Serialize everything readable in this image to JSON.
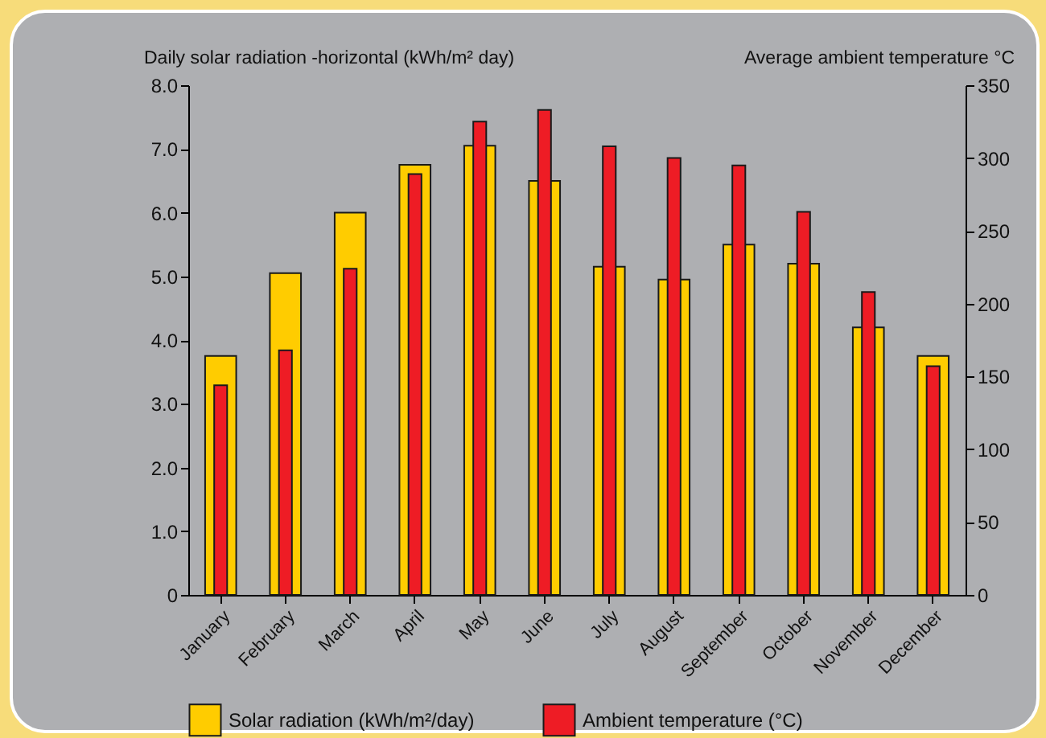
{
  "chart_data": {
    "type": "bar",
    "ylabel": "Daily solar radiation -horizontal (kWh/m² day)",
    "y2label": "Average ambient temperature °C",
    "categories": [
      "January",
      "February",
      "March",
      "April",
      "May",
      "June",
      "July",
      "August",
      "September",
      "October",
      "November",
      "December"
    ],
    "series": [
      {
        "name": "Solar radiation (kWh/m²/day)",
        "color": "#ffcc00",
        "values": [
          3.75,
          5.05,
          6.0,
          6.75,
          7.05,
          6.5,
          5.15,
          4.95,
          5.5,
          5.2,
          4.2,
          3.75
        ]
      },
      {
        "name": "Ambient temperature (°C)",
        "color": "#ee1c25",
        "axis": "y2",
        "values": [
          144,
          168,
          224,
          289,
          325,
          333,
          308,
          300,
          295,
          263,
          208,
          157
        ]
      }
    ],
    "ylim": [
      0,
      8
    ],
    "yticks": [
      {
        "value": 0,
        "label": "0"
      },
      {
        "value": 1,
        "label": "1.0"
      },
      {
        "value": 2,
        "label": "2.0"
      },
      {
        "value": 3,
        "label": "3.0"
      },
      {
        "value": 4,
        "label": "4.0"
      },
      {
        "value": 5,
        "label": "5.0"
      },
      {
        "value": 6,
        "label": "6.0"
      },
      {
        "value": 7,
        "label": "7.0"
      },
      {
        "value": 8,
        "label": "8.0"
      }
    ],
    "y2lim": [
      0,
      350
    ],
    "y2ticks": [
      0,
      50,
      100,
      150,
      200,
      250,
      300,
      350
    ],
    "grid": false,
    "legend": "bottom"
  }
}
